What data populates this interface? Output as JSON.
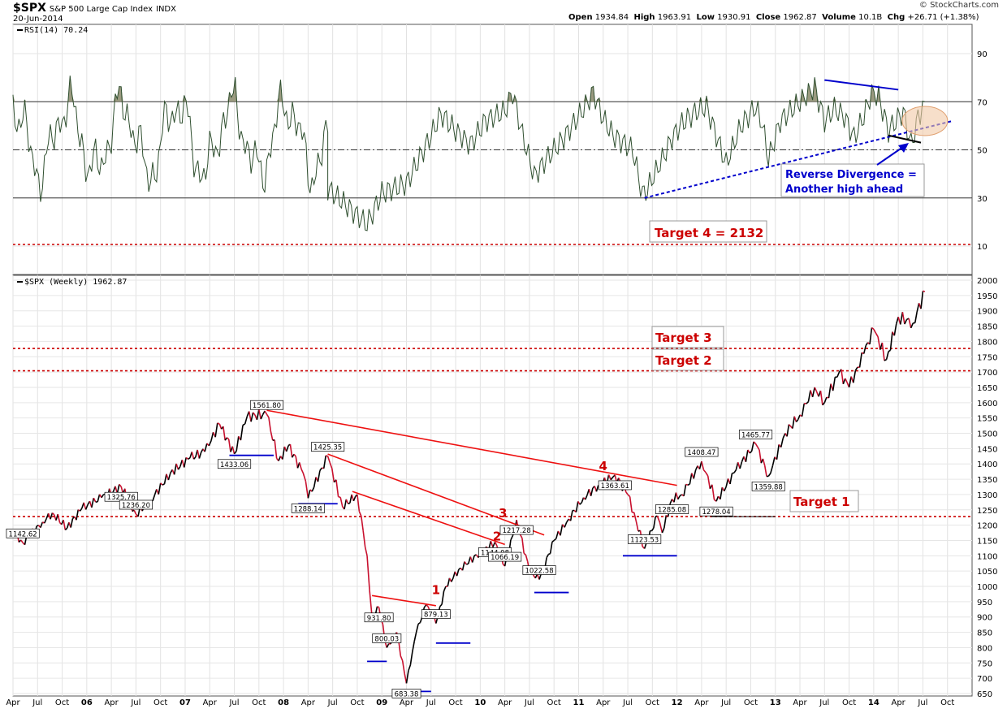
{
  "header": {
    "symbol": "$SPX",
    "name": "S&P 500 Large Cap Index",
    "exchange": "INDX",
    "date": "20-Jun-2014",
    "open_label": "Open",
    "open": "1934.84",
    "high_label": "High",
    "high": "1963.91",
    "low_label": "Low",
    "low": "1930.91",
    "close_label": "Close",
    "close": "1962.87",
    "volume_label": "Volume",
    "volume": "10.1B",
    "chg_label": "Chg",
    "chg": "+26.71 (+1.38%)",
    "credit": "© StockCharts.com"
  },
  "chart_data": [
    {
      "type": "line",
      "panel": "indicator",
      "legend": "RSI(14) 70.24",
      "ylim": [
        0,
        100
      ],
      "yticks": [
        10,
        30,
        50,
        70,
        90
      ],
      "reference_lines": [
        30,
        50,
        70
      ],
      "line_color": "#2f4f2f",
      "fill_above_70_color": "#9a9a80",
      "series": [
        {
          "values": [
            [
              2008.4,
              34
            ],
            [
              2008.8,
              19
            ],
            [
              2008.95,
              32
            ],
            [
              2009.2,
              36
            ],
            [
              2009.45,
              56
            ],
            [
              2009.55,
              65
            ],
            [
              2009.7,
              58
            ],
            [
              2009.85,
              52
            ],
            [
              2010.0,
              62
            ],
            [
              2010.2,
              66
            ],
            [
              2010.28,
              74
            ],
            [
              2010.38,
              56
            ],
            [
              2010.5,
              39
            ],
            [
              2010.62,
              46
            ],
            [
              2010.8,
              55
            ],
            [
              2011.0,
              67
            ],
            [
              2011.1,
              74
            ],
            [
              2011.2,
              63
            ],
            [
              2011.3,
              56
            ],
            [
              2011.5,
              50
            ],
            [
              2011.6,
              31
            ],
            [
              2011.65,
              34
            ],
            [
              2011.8,
              46
            ],
            [
              2011.9,
              55
            ],
            [
              2012.0,
              61
            ],
            [
              2012.15,
              66
            ],
            [
              2012.25,
              68
            ],
            [
              2012.35,
              56
            ],
            [
              2012.45,
              44
            ],
            [
              2012.6,
              60
            ],
            [
              2012.75,
              68
            ],
            [
              2012.82,
              60
            ],
            [
              2012.88,
              46
            ],
            [
              2013.0,
              62
            ],
            [
              2013.2,
              70
            ],
            [
              2013.35,
              76
            ],
            [
              2013.45,
              62
            ],
            [
              2013.55,
              67
            ],
            [
              2013.65,
              64
            ],
            [
              2013.75,
              55
            ],
            [
              2013.85,
              64
            ],
            [
              2013.93,
              74
            ],
            [
              2014.0,
              72
            ],
            [
              2014.1,
              58
            ],
            [
              2014.25,
              66
            ],
            [
              2014.33,
              52
            ],
            [
              2014.4,
              63
            ],
            [
              2014.47,
              70
            ]
          ]
        }
      ],
      "annotations": [
        "Reverse Divergence =",
        "Another high ahead",
        "Target 4 = 2132"
      ],
      "annotation_colors": {
        "blue": "#0000cc",
        "red": "#cc0000"
      }
    },
    {
      "type": "line",
      "panel": "price",
      "legend": "$SPX (Weekly) 1962.87",
      "ylim": [
        630,
        2010
      ],
      "yticks": [
        650,
        700,
        750,
        800,
        850,
        900,
        950,
        1000,
        1050,
        1100,
        1150,
        1200,
        1250,
        1300,
        1350,
        1400,
        1450,
        1500,
        1550,
        1600,
        1650,
        1700,
        1750,
        1800,
        1850,
        1900,
        1950,
        2000
      ],
      "x_ticks": [
        "Apr",
        "Jul",
        "Oct",
        "06",
        "Apr",
        "Jul",
        "Oct",
        "07",
        "Apr",
        "Jul",
        "Oct",
        "08",
        "Apr",
        "Jul",
        "Oct",
        "09",
        "Apr",
        "Jul",
        "Oct",
        "10",
        "Apr",
        "Jul",
        "Oct",
        "11",
        "Apr",
        "Jul",
        "Oct",
        "12",
        "Apr",
        "Jul",
        "Oct",
        "13",
        "Apr",
        "Jul",
        "Oct",
        "14",
        "Apr",
        "Jul",
        "Oct"
      ],
      "series": [
        {
          "values": [
            [
              2005.2,
              1175
            ],
            [
              2005.3,
              1142.62
            ],
            [
              2005.5,
              1210
            ],
            [
              2005.6,
              1240
            ],
            [
              2005.75,
              1190
            ],
            [
              2005.9,
              1255
            ],
            [
              2006.1,
              1290
            ],
            [
              2006.3,
              1325.76
            ],
            [
              2006.45,
              1236.2
            ],
            [
              2006.6,
              1280
            ],
            [
              2006.8,
              1370
            ],
            [
              2007.0,
              1420
            ],
            [
              2007.15,
              1440
            ],
            [
              2007.3,
              1530
            ],
            [
              2007.45,
              1433.06
            ],
            [
              2007.58,
              1555
            ],
            [
              2007.78,
              1561.8
            ],
            [
              2007.9,
              1410
            ],
            [
              2008.0,
              1460
            ],
            [
              2008.15,
              1370
            ],
            [
              2008.2,
              1288.14
            ],
            [
              2008.4,
              1425.35
            ],
            [
              2008.55,
              1260
            ],
            [
              2008.7,
              1300
            ],
            [
              2008.8,
              1100
            ],
            [
              2008.85,
              900
            ],
            [
              2008.92,
              931.8
            ],
            [
              2009.0,
              800.03
            ],
            [
              2009.1,
              850
            ],
            [
              2009.2,
              683.38
            ],
            [
              2009.3,
              850
            ],
            [
              2009.4,
              940
            ],
            [
              2009.5,
              879.13
            ],
            [
              2009.6,
              1000
            ],
            [
              2009.75,
              1060
            ],
            [
              2009.95,
              1110
            ],
            [
              2010.1,
              1144.98
            ],
            [
              2010.2,
              1066.19
            ],
            [
              2010.32,
              1217.28
            ],
            [
              2010.45,
              1050
            ],
            [
              2010.55,
              1022.58
            ],
            [
              2010.7,
              1150
            ],
            [
              2010.85,
              1220
            ],
            [
              2011.0,
              1290
            ],
            [
              2011.15,
              1330
            ],
            [
              2011.32,
              1363.61
            ],
            [
              2011.45,
              1300
            ],
            [
              2011.62,
              1123.53
            ],
            [
              2011.75,
              1230
            ],
            [
              2011.8,
              1175
            ],
            [
              2011.9,
              1285.08
            ],
            [
              2012.0,
              1300
            ],
            [
              2012.2,
              1408.47
            ],
            [
              2012.35,
              1278.04
            ],
            [
              2012.55,
              1380
            ],
            [
              2012.75,
              1465.77
            ],
            [
              2012.88,
              1359.88
            ],
            [
              2013.05,
              1500
            ],
            [
              2013.2,
              1560
            ],
            [
              2013.35,
              1650
            ],
            [
              2013.45,
              1600
            ],
            [
              2013.6,
              1700
            ],
            [
              2013.7,
              1650
            ],
            [
              2013.85,
              1760
            ],
            [
              2013.95,
              1840
            ],
            [
              2014.08,
              1741
            ],
            [
              2014.2,
              1880
            ],
            [
              2014.35,
              1860
            ],
            [
              2014.47,
              1962.87
            ]
          ]
        }
      ],
      "peak_labels": [
        {
          "x": 2005.3,
          "y": 1142.62,
          "label": "1142.62"
        },
        {
          "x": 2006.3,
          "y": 1325.76,
          "label": "1325.76"
        },
        {
          "x": 2006.45,
          "y": 1236.2,
          "label": "1236.20"
        },
        {
          "x": 2007.45,
          "y": 1433.06,
          "label": "1433.06"
        },
        {
          "x": 2007.78,
          "y": 1561.8,
          "label": "1561.80"
        },
        {
          "x": 2008.2,
          "y": 1288.14,
          "label": "1288.14"
        },
        {
          "x": 2008.4,
          "y": 1425.35,
          "label": "1425.35"
        },
        {
          "x": 2008.92,
          "y": 931.8,
          "label": "931.80"
        },
        {
          "x": 2009.0,
          "y": 800.03,
          "label": "800.03"
        },
        {
          "x": 2009.2,
          "y": 683.38,
          "label": "683.38"
        },
        {
          "x": 2009.5,
          "y": 879.13,
          "label": "879.13"
        },
        {
          "x": 2010.1,
          "y": 1144.98,
          "label": "1144.98"
        },
        {
          "x": 2010.2,
          "y": 1066.19,
          "label": "1066.19"
        },
        {
          "x": 2010.32,
          "y": 1217.28,
          "label": "1217.28"
        },
        {
          "x": 2010.55,
          "y": 1022.58,
          "label": "1022.58"
        },
        {
          "x": 2011.32,
          "y": 1363.61,
          "label": "1363.61"
        },
        {
          "x": 2011.62,
          "y": 1123.53,
          "label": "1123.53"
        },
        {
          "x": 2011.9,
          "y": 1285.08,
          "label": "1285.08"
        },
        {
          "x": 2012.2,
          "y": 1408.47,
          "label": "1408.47"
        },
        {
          "x": 2012.35,
          "y": 1278.04,
          "label": "1278.04"
        },
        {
          "x": 2012.75,
          "y": 1465.77,
          "label": "1465.77"
        },
        {
          "x": 2012.88,
          "y": 1359.88,
          "label": "1359.88"
        }
      ],
      "targets": [
        {
          "label": "Target 3",
          "value": 1777
        },
        {
          "label": "Target 2",
          "value": 1704
        },
        {
          "label": "Target 1",
          "value": 1228
        }
      ],
      "target_line_color": "#cc0000",
      "wave_labels": [
        "1",
        "2",
        "3",
        "4"
      ],
      "trendline_color": "#ee1111",
      "support_color": "#0000cc"
    }
  ]
}
